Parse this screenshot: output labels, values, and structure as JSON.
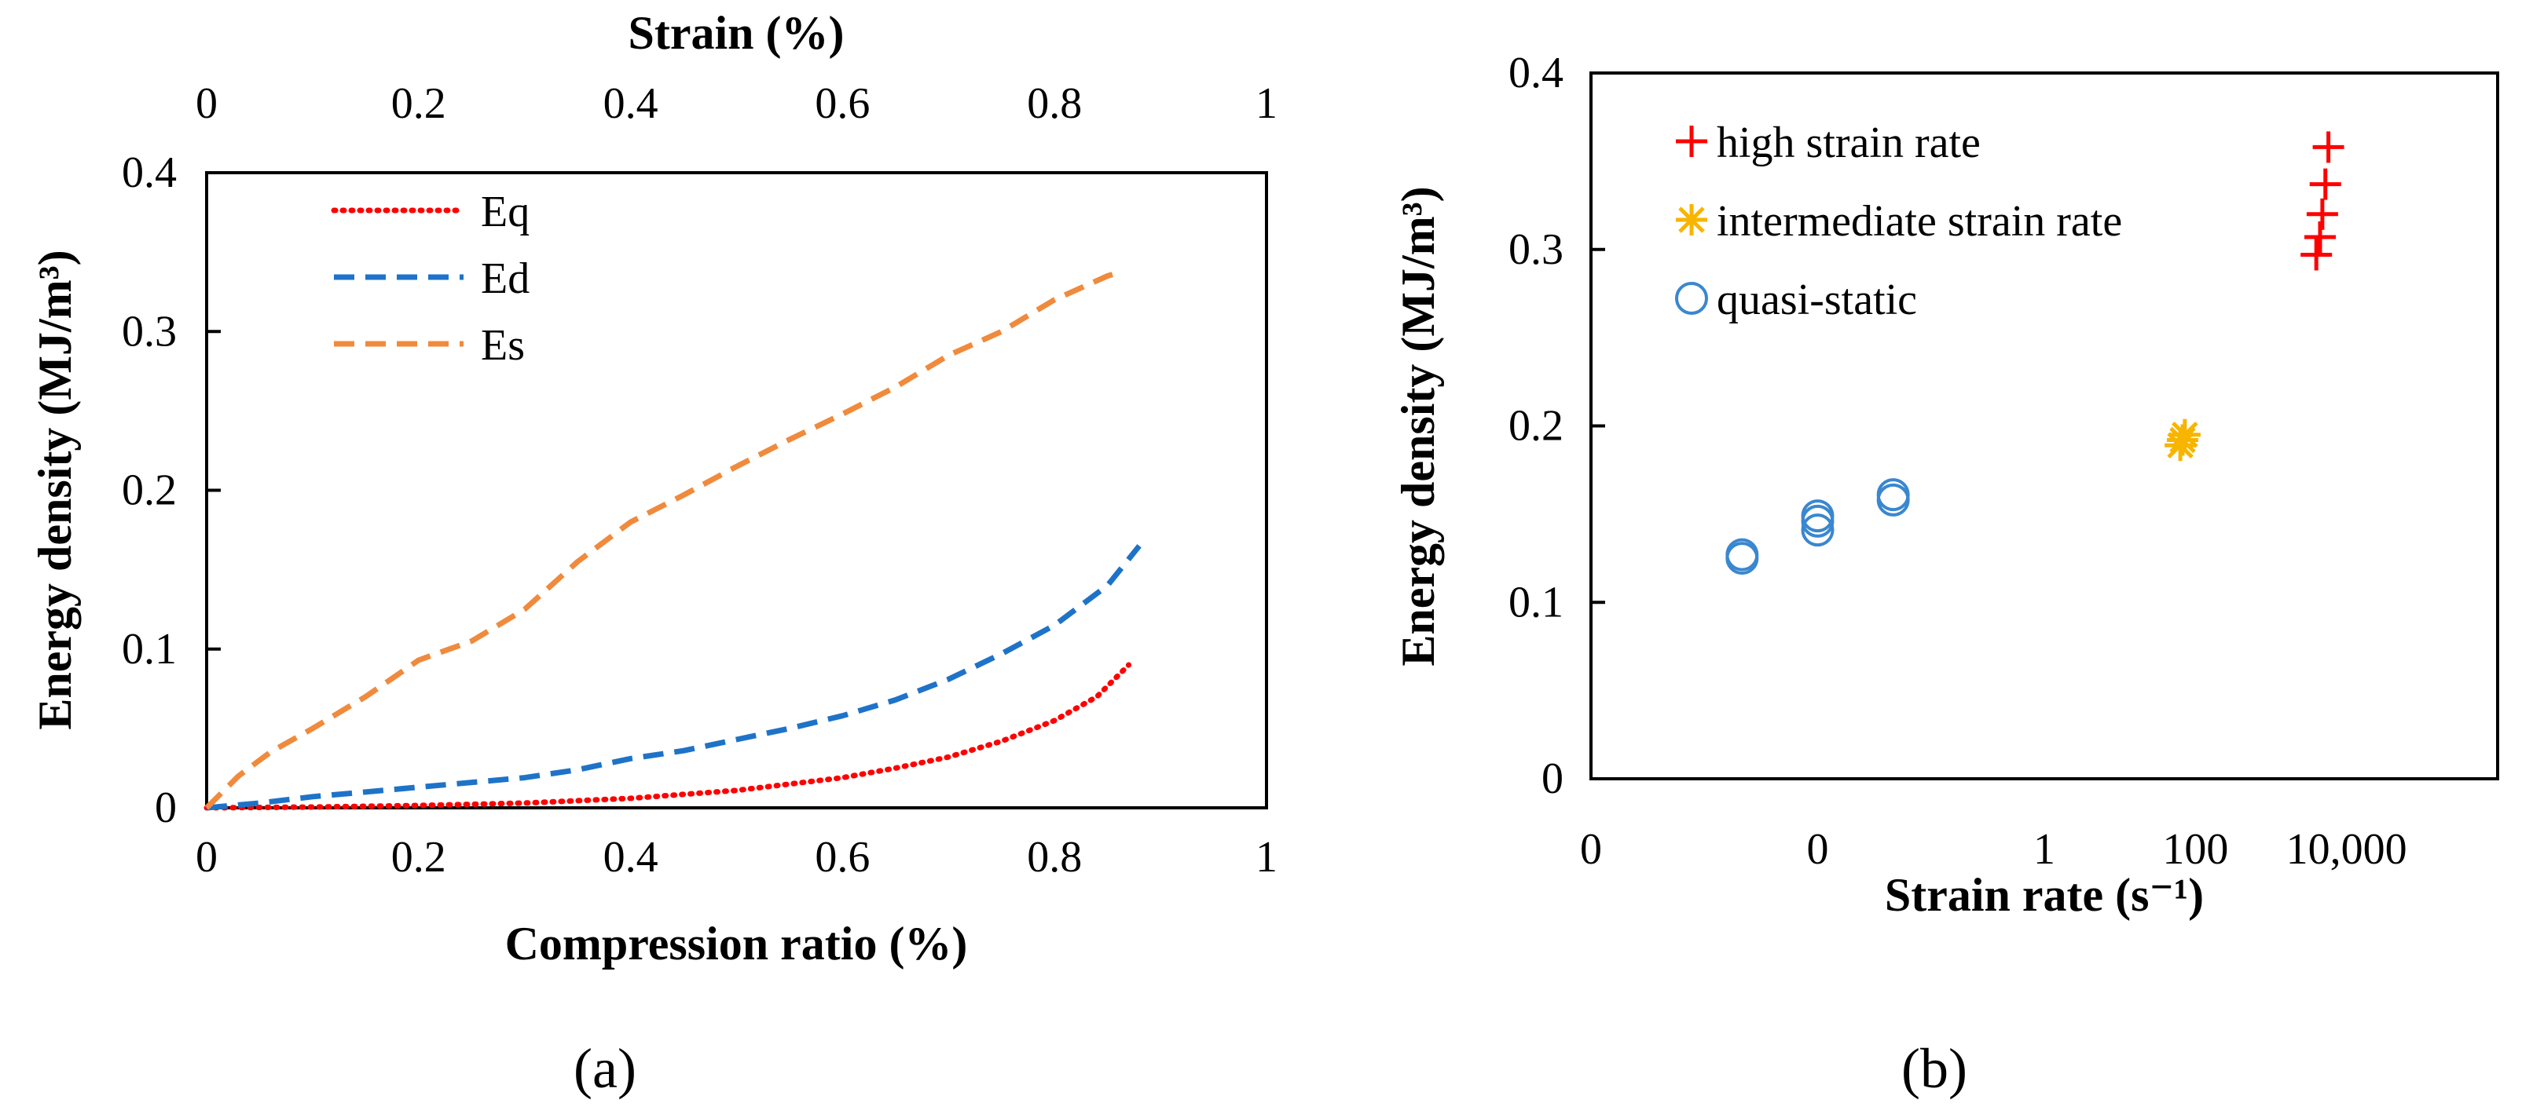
{
  "chart_data": [
    {
      "id": "a",
      "type": "line",
      "panel_label": "(a)",
      "xlabel": "Compression ratio (%)",
      "x2label": "Strain (%)",
      "ylabel": "Energy density (MJ/m³)",
      "xlim": [
        0,
        1
      ],
      "ylim": [
        0,
        0.4
      ],
      "xticks": [
        "0",
        "0.2",
        "0.4",
        "0.6",
        "0.8",
        "1"
      ],
      "x2ticks": [
        "0",
        "0.2",
        "0.4",
        "0.6",
        "0.8",
        "1"
      ],
      "yticks": [
        "0",
        "0.1",
        "0.2",
        "0.3",
        "0.4"
      ],
      "legend_position": "top-left",
      "series": [
        {
          "name": "Eq",
          "color": "#ff0000",
          "style": "dotted",
          "points": [
            [
              0,
              0
            ],
            [
              0.1,
              0.0005
            ],
            [
              0.2,
              0.0015
            ],
            [
              0.3,
              0.003
            ],
            [
              0.4,
              0.006
            ],
            [
              0.5,
              0.011
            ],
            [
              0.6,
              0.019
            ],
            [
              0.65,
              0.025
            ],
            [
              0.7,
              0.032
            ],
            [
              0.75,
              0.042
            ],
            [
              0.8,
              0.055
            ],
            [
              0.84,
              0.07
            ],
            [
              0.87,
              0.09
            ]
          ]
        },
        {
          "name": "Ed",
          "color": "#1e73c8",
          "style": "dashed",
          "points": [
            [
              0,
              0
            ],
            [
              0.05,
              0.003
            ],
            [
              0.1,
              0.007
            ],
            [
              0.15,
              0.01
            ],
            [
              0.2,
              0.013
            ],
            [
              0.25,
              0.016
            ],
            [
              0.3,
              0.019
            ],
            [
              0.35,
              0.024
            ],
            [
              0.4,
              0.031
            ],
            [
              0.45,
              0.036
            ],
            [
              0.5,
              0.043
            ],
            [
              0.55,
              0.05
            ],
            [
              0.6,
              0.058
            ],
            [
              0.65,
              0.068
            ],
            [
              0.7,
              0.081
            ],
            [
              0.75,
              0.097
            ],
            [
              0.8,
              0.115
            ],
            [
              0.85,
              0.14
            ],
            [
              0.88,
              0.165
            ]
          ]
        },
        {
          "name": "Es",
          "color": "#f08a3c",
          "style": "dashed",
          "points": [
            [
              0,
              0
            ],
            [
              0.03,
              0.02
            ],
            [
              0.06,
              0.035
            ],
            [
              0.1,
              0.05
            ],
            [
              0.15,
              0.07
            ],
            [
              0.2,
              0.093
            ],
            [
              0.25,
              0.105
            ],
            [
              0.3,
              0.125
            ],
            [
              0.35,
              0.155
            ],
            [
              0.4,
              0.18
            ],
            [
              0.45,
              0.197
            ],
            [
              0.5,
              0.215
            ],
            [
              0.55,
              0.232
            ],
            [
              0.6,
              0.248
            ],
            [
              0.65,
              0.265
            ],
            [
              0.7,
              0.285
            ],
            [
              0.75,
              0.3
            ],
            [
              0.8,
              0.32
            ],
            [
              0.85,
              0.335
            ],
            [
              0.86,
              0.337
            ]
          ]
        }
      ]
    },
    {
      "id": "b",
      "type": "scatter",
      "panel_label": "(b)",
      "xlabel": "Strain rate (s⁻¹)",
      "ylabel": "Energy density (MJ/m³)",
      "xscale": "log",
      "xlim_log10": [
        -6,
        6
      ],
      "ylim": [
        0,
        0.4
      ],
      "xticks": [
        {
          "log10": -6,
          "label": "0"
        },
        {
          "log10": -3,
          "label": "0"
        },
        {
          "log10": 0,
          "label": "1"
        },
        {
          "log10": 2,
          "label": "100"
        },
        {
          "log10": 4,
          "label": "10,000"
        }
      ],
      "yticks": [
        "0",
        "0.1",
        "0.2",
        "0.3",
        "0.4"
      ],
      "legend_position": "top-left",
      "series": [
        {
          "name": "high strain rate",
          "marker": "plus",
          "color": "#ff0000",
          "points": [
            [
              3.6,
              0.297
            ],
            [
              3.65,
              0.307
            ],
            [
              3.68,
              0.32
            ],
            [
              3.72,
              0.337
            ],
            [
              3.76,
              0.358
            ]
          ]
        },
        {
          "name": "intermediate strain rate",
          "marker": "star",
          "color": "#f7b500",
          "points": [
            [
              1.8,
              0.189
            ],
            [
              1.83,
              0.192
            ],
            [
              1.86,
              0.195
            ]
          ]
        },
        {
          "name": "quasi-static",
          "marker": "circle",
          "color": "#3a87d0",
          "points": [
            [
              -4,
              0.125
            ],
            [
              -4,
              0.127
            ],
            [
              -3,
              0.141
            ],
            [
              -3,
              0.146
            ],
            [
              -3,
              0.149
            ],
            [
              -2,
              0.158
            ],
            [
              -2,
              0.161
            ]
          ]
        }
      ]
    }
  ]
}
